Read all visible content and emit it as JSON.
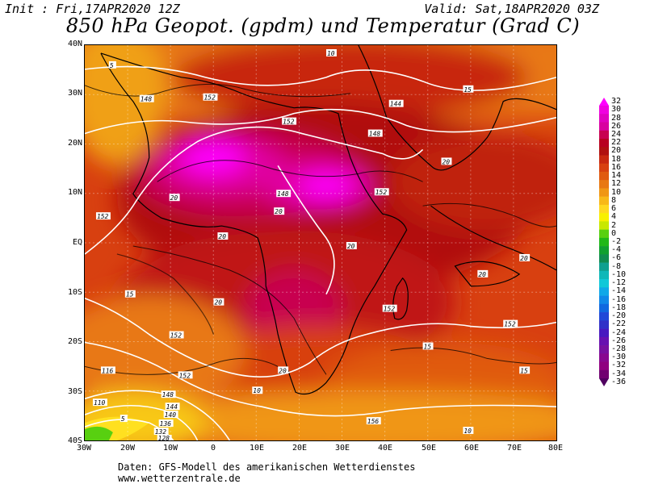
{
  "header": {
    "init": "Init : Fri,17APR2020 12Z",
    "valid": "Valid: Sat,18APR2020 03Z",
    "title": "850 hPa Geopot. (gpdm) und Temperatur (Grad C)"
  },
  "axes": {
    "lat_labels": [
      "40N",
      "30N",
      "20N",
      "10N",
      "EQ",
      "10S",
      "20S",
      "30S",
      "40S"
    ],
    "lon_labels": [
      "30W",
      "20W",
      "10W",
      "0",
      "10E",
      "20E",
      "30E",
      "40E",
      "50E",
      "60E",
      "70E",
      "80E"
    ]
  },
  "colorbar": {
    "labels": [
      "32",
      "30",
      "28",
      "26",
      "24",
      "22",
      "20",
      "18",
      "16",
      "14",
      "12",
      "10",
      "8",
      "6",
      "4",
      "2",
      "0",
      "-2",
      "-4",
      "-6",
      "-8",
      "-10",
      "-12",
      "-14",
      "-16",
      "-18",
      "-20",
      "-22",
      "-24",
      "-26",
      "-28",
      "-30",
      "-32",
      "-34",
      "-36"
    ],
    "colors": [
      "#ff00ff",
      "#f000e0",
      "#e000c0",
      "#d800a0",
      "#c80050",
      "#b80020",
      "#b01010",
      "#c82810",
      "#d84010",
      "#e05a10",
      "#e87812",
      "#f09614",
      "#f8b818",
      "#ffd820",
      "#f8f000",
      "#c8e800",
      "#58d010",
      "#20b818",
      "#10a030",
      "#108c50",
      "#10a090",
      "#10b8b8",
      "#10c8d8",
      "#10a8e8",
      "#1088e8",
      "#1068e0",
      "#2048d8",
      "#3030c8",
      "#4818c0",
      "#6810b0",
      "#7810a0",
      "#880890",
      "#900080",
      "#700070",
      "#500060"
    ]
  },
  "map": {
    "geopotential_labels": [
      "148",
      "152",
      "156",
      "144",
      "140",
      "136",
      "132",
      "128",
      "116",
      "110"
    ],
    "temperature_labels": [
      "20",
      "15",
      "10",
      "5"
    ]
  },
  "footer": {
    "line1": "Daten: GFS-Modell des amerikanischen Wetterdienstes",
    "line2": "www.wetterzentrale.de"
  }
}
